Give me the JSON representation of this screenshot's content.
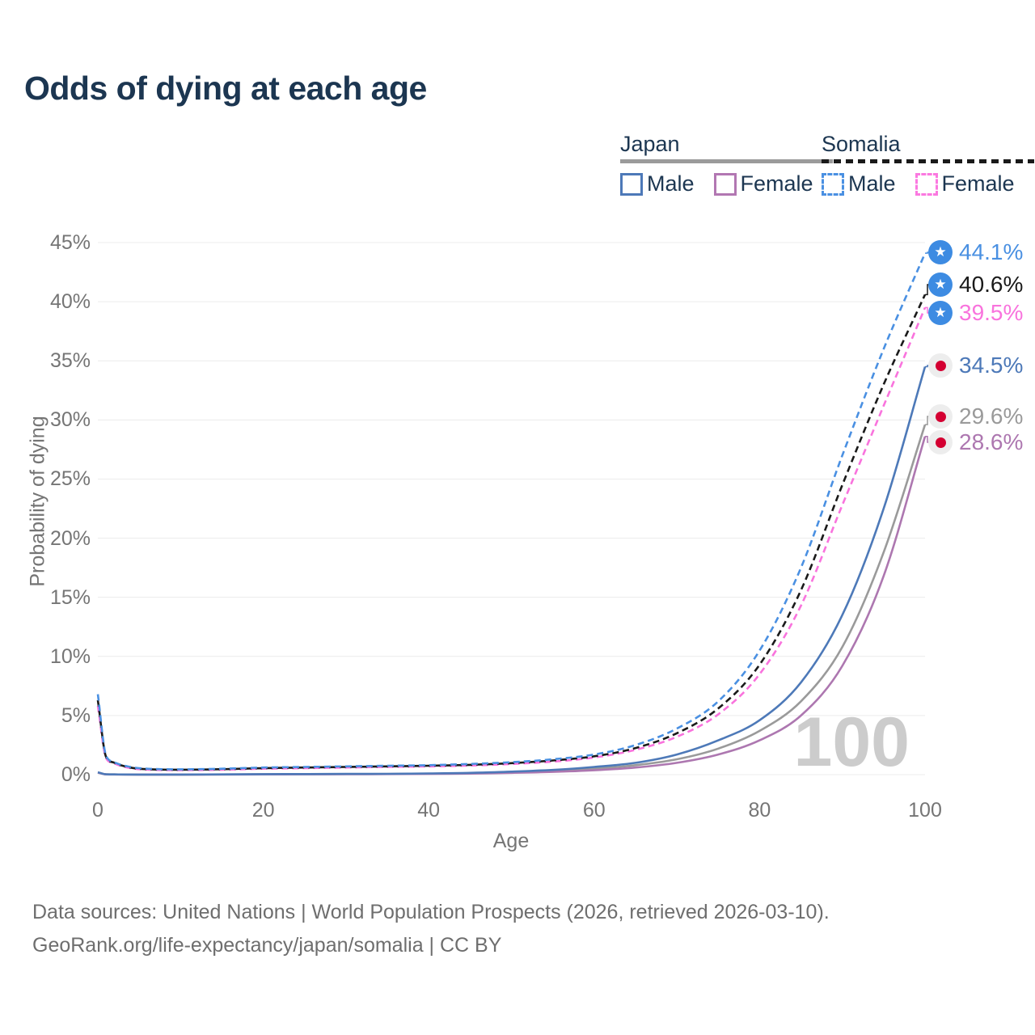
{
  "title": "Odds of dying at each age",
  "legend": {
    "groups": [
      {
        "label": "Japan",
        "line_style": "solid",
        "line_color": "#9b9b9b",
        "items": [
          {
            "label": "Male",
            "color": "#4d79b8"
          },
          {
            "label": "Female",
            "color": "#b277b2"
          }
        ]
      },
      {
        "label": "Somalia",
        "line_style": "dashed",
        "line_color": "#1a1a1a",
        "items": [
          {
            "label": "Male",
            "color": "#4a90e2"
          },
          {
            "label": "Female",
            "color": "#fb79e0"
          }
        ]
      }
    ]
  },
  "chart_data": {
    "type": "line",
    "title": "Odds of dying at each age",
    "xlabel": "Age",
    "ylabel": "Probability of dying",
    "unit": "percent",
    "xlim": [
      0,
      100
    ],
    "ylim": [
      0,
      45
    ],
    "x_ticks": [
      0,
      20,
      40,
      60,
      80,
      100
    ],
    "y_tick_labels": [
      "0%",
      "5%",
      "10%",
      "15%",
      "20%",
      "25%",
      "30%",
      "35%",
      "40%",
      "45%"
    ],
    "grid": "horizontal",
    "legend_position": "top-right",
    "watermark": "100",
    "ages": [
      0,
      1,
      2,
      3,
      5,
      10,
      15,
      20,
      25,
      30,
      35,
      40,
      45,
      50,
      55,
      60,
      65,
      70,
      75,
      80,
      85,
      90,
      95,
      100
    ],
    "series": [
      {
        "name": "Somalia Male",
        "color": "#4a90e2",
        "dashed": true,
        "flag": "somalia",
        "end_label": "44.1%",
        "end_value": 44.1,
        "values": [
          6.8,
          1.6,
          1.05,
          0.8,
          0.55,
          0.45,
          0.5,
          0.6,
          0.65,
          0.7,
          0.75,
          0.8,
          0.9,
          1.05,
          1.3,
          1.7,
          2.5,
          3.9,
          6.2,
          10.5,
          17.5,
          27.0,
          36.0,
          44.1
        ]
      },
      {
        "name": "Somalia",
        "color": "#1a1a1a",
        "dashed": true,
        "flag": "somalia",
        "end_label": "40.6%",
        "end_value": 40.6,
        "values": [
          6.3,
          1.5,
          1.0,
          0.75,
          0.5,
          0.42,
          0.46,
          0.55,
          0.6,
          0.65,
          0.7,
          0.75,
          0.83,
          0.97,
          1.2,
          1.55,
          2.25,
          3.5,
          5.6,
          9.3,
          15.6,
          24.5,
          33.0,
          40.6
        ]
      },
      {
        "name": "Somalia Female",
        "color": "#f973dd",
        "dashed": true,
        "flag": "somalia",
        "end_label": "39.5%",
        "end_value": 39.5,
        "values": [
          5.8,
          1.4,
          0.95,
          0.7,
          0.46,
          0.38,
          0.42,
          0.5,
          0.55,
          0.6,
          0.65,
          0.7,
          0.77,
          0.9,
          1.1,
          1.45,
          2.1,
          3.2,
          5.1,
          8.5,
          14.3,
          22.8,
          31.2,
          39.5
        ]
      },
      {
        "name": "Japan Male",
        "color": "#4d79b8",
        "dashed": false,
        "flag": "japan",
        "end_label": "34.5%",
        "end_value": 34.5,
        "values": [
          0.2,
          0.03,
          0.02,
          0.015,
          0.01,
          0.01,
          0.02,
          0.04,
          0.05,
          0.06,
          0.07,
          0.1,
          0.15,
          0.25,
          0.4,
          0.65,
          1.0,
          1.7,
          2.9,
          4.6,
          7.8,
          13.5,
          22.5,
          34.5
        ]
      },
      {
        "name": "Japan",
        "color": "#9a9a9a",
        "dashed": false,
        "flag": "japan",
        "end_label": "29.6%",
        "end_value": 29.6,
        "values": [
          0.18,
          0.025,
          0.018,
          0.013,
          0.009,
          0.009,
          0.015,
          0.03,
          0.04,
          0.045,
          0.055,
          0.08,
          0.12,
          0.2,
          0.3,
          0.5,
          0.8,
          1.3,
          2.2,
          3.7,
          6.2,
          10.8,
          18.8,
          29.6
        ]
      },
      {
        "name": "Japan Female",
        "color": "#ad77b0",
        "dashed": false,
        "flag": "japan",
        "end_label": "28.6%",
        "end_value": 28.6,
        "values": [
          0.17,
          0.02,
          0.015,
          0.012,
          0.008,
          0.008,
          0.012,
          0.02,
          0.03,
          0.035,
          0.045,
          0.06,
          0.09,
          0.15,
          0.23,
          0.37,
          0.6,
          1.0,
          1.7,
          2.9,
          5.0,
          9.2,
          16.8,
          28.6
        ]
      }
    ]
  },
  "footer": {
    "line1": "Data sources: United Nations | World Population Prospects (2026, retrieved 2026-03-10).",
    "line2": "GeoRank.org/life-expectancy/japan/somalia | CC BY"
  },
  "icons": {
    "somalia_flag_star": "★"
  },
  "colors": {
    "title": "#1c3651",
    "legend_text": "#1c3651",
    "axis_text": "#757575",
    "grid": "#ececec",
    "watermark": "#cccccc",
    "footer": "#6e6e6e",
    "somalia_flag_blue": "#3d8be2",
    "somalia_flag_star": "#ffffff",
    "japan_flag_red": "#d40032",
    "flag_circle_bg": "#ededed"
  }
}
